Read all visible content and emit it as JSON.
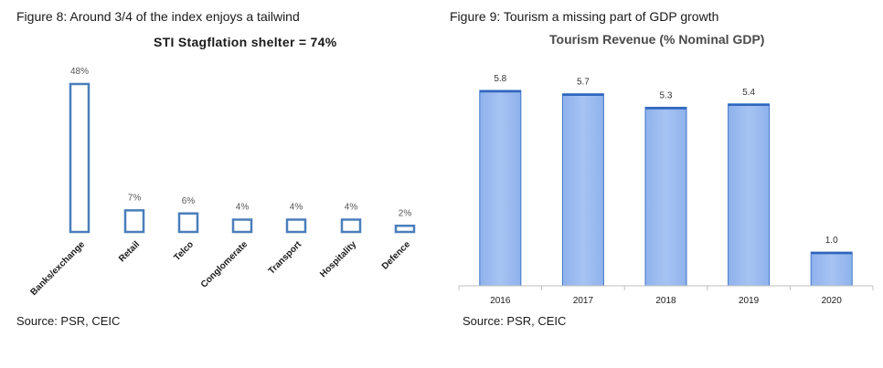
{
  "figures": [
    {
      "caption": "Figure 8:   Around 3/4 of the index enjoys a tailwind",
      "source": "Source: PSR, CEIC",
      "chart_data": {
        "type": "bar",
        "title": "STI Stagflation shelter = 74%",
        "categories": [
          "Banks/exchange",
          "Retail",
          "Telco",
          "Conglomerate",
          "Transport",
          "Hospitality",
          "Defence"
        ],
        "values": [
          48,
          7,
          6,
          4,
          4,
          4,
          2
        ],
        "value_labels": [
          "48%",
          "7%",
          "6%",
          "4%",
          "4%",
          "4%",
          "2%"
        ],
        "unit": "%",
        "grid": false,
        "bar_style": "outline",
        "color": "#4a7ebb"
      }
    },
    {
      "caption": "Figure 9:   Tourism a missing part of GDP growth",
      "source": "Source: PSR, CEIC",
      "chart_data": {
        "type": "bar",
        "title": "Tourism Revenue (% Nominal GDP)",
        "categories": [
          "2016",
          "2017",
          "2018",
          "2019",
          "2020"
        ],
        "values": [
          5.8,
          5.7,
          5.3,
          5.4,
          1.0
        ],
        "value_labels": [
          "5.8",
          "5.7",
          "5.3",
          "5.4",
          "1.0"
        ],
        "grid": false,
        "color": "#9cbcf0",
        "border_color": "#3f76c9"
      }
    }
  ]
}
